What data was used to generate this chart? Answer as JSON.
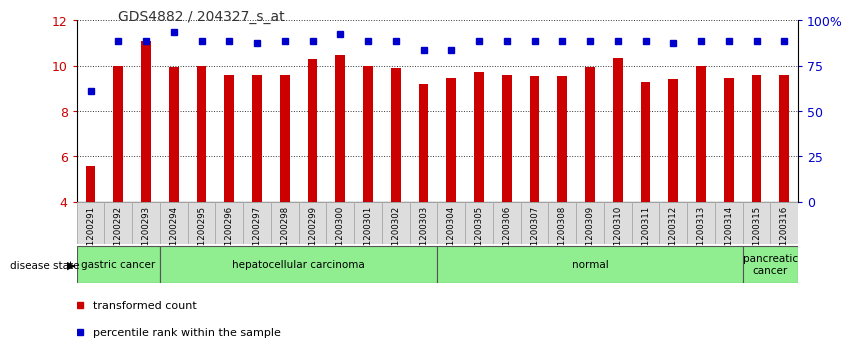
{
  "title": "GDS4882 / 204327_s_at",
  "samples": [
    "GSM1200291",
    "GSM1200292",
    "GSM1200293",
    "GSM1200294",
    "GSM1200295",
    "GSM1200296",
    "GSM1200297",
    "GSM1200298",
    "GSM1200299",
    "GSM1200300",
    "GSM1200301",
    "GSM1200302",
    "GSM1200303",
    "GSM1200304",
    "GSM1200305",
    "GSM1200306",
    "GSM1200307",
    "GSM1200308",
    "GSM1200309",
    "GSM1200310",
    "GSM1200311",
    "GSM1200312",
    "GSM1200313",
    "GSM1200314",
    "GSM1200315",
    "GSM1200316"
  ],
  "bar_values": [
    5.6,
    10.0,
    11.1,
    9.95,
    10.0,
    9.6,
    9.6,
    9.6,
    10.3,
    10.45,
    10.0,
    9.9,
    9.2,
    9.45,
    9.7,
    9.6,
    9.55,
    9.55,
    9.95,
    10.35,
    9.3,
    9.4,
    10.0,
    9.45,
    9.6,
    9.6
  ],
  "percentile_values": [
    8.9,
    11.1,
    11.1,
    11.5,
    11.1,
    11.1,
    11.0,
    11.1,
    11.1,
    11.4,
    11.1,
    11.1,
    10.7,
    10.7,
    11.1,
    11.1,
    11.1,
    11.1,
    11.1,
    11.1,
    11.1,
    11.0,
    11.1,
    11.1,
    11.1,
    11.1
  ],
  "ylim_left": [
    4,
    12
  ],
  "yticks_left": [
    4,
    6,
    8,
    10,
    12
  ],
  "yticks_right": [
    0,
    25,
    50,
    75,
    100
  ],
  "bar_color": "#CC0000",
  "dot_color": "#0000CC",
  "bg_color": "#FFFFFF",
  "grid_color": "#000000",
  "disease_groups": [
    {
      "label": "gastric cancer",
      "start": 0,
      "end": 3
    },
    {
      "label": "hepatocellular carcinoma",
      "start": 3,
      "end": 13
    },
    {
      "label": "normal",
      "start": 13,
      "end": 24
    },
    {
      "label": "pancreatic\ncancer",
      "start": 24,
      "end": 26
    }
  ],
  "bar_width": 0.35,
  "tick_label_bg": "#DDDDDD",
  "tick_label_edge": "#AAAAAA"
}
